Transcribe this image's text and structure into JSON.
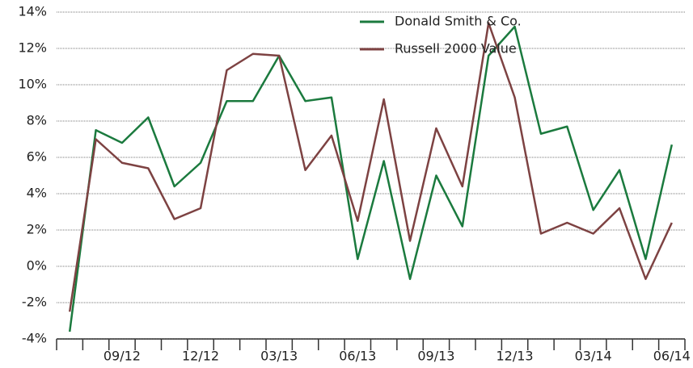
{
  "chart_data": {
    "type": "line",
    "categories": [
      null,
      null,
      "09/12",
      null,
      null,
      "12/12",
      null,
      null,
      "03/13",
      null,
      null,
      "06/13",
      null,
      null,
      "09/13",
      null,
      null,
      "12/13",
      null,
      null,
      "03/14",
      null,
      null,
      "06/14"
    ],
    "series": [
      {
        "name": "Donald Smith & Co.",
        "color": "#1b7a3e",
        "values": [
          -3.6,
          7.5,
          6.8,
          8.2,
          4.4,
          5.7,
          9.1,
          9.1,
          11.6,
          9.1,
          9.3,
          0.4,
          5.8,
          -0.7,
          5.0,
          2.2,
          11.6,
          13.2,
          7.3,
          7.7,
          3.1,
          5.3,
          0.4,
          6.7
        ]
      },
      {
        "name": "Russell 2000 Value",
        "color": "#7d4242",
        "values": [
          -2.5,
          7.0,
          5.7,
          5.4,
          2.6,
          3.2,
          10.8,
          11.7,
          11.6,
          5.3,
          7.2,
          2.5,
          9.2,
          1.4,
          7.6,
          4.4,
          13.4,
          9.3,
          1.8,
          2.4,
          1.8,
          3.2,
          -0.7,
          2.4
        ]
      }
    ],
    "ylim": [
      -4,
      14
    ],
    "yticks": [
      {
        "value": -4,
        "label": "-4%"
      },
      {
        "value": -2,
        "label": "-2%"
      },
      {
        "value": 0,
        "label": "0%"
      },
      {
        "value": 2,
        "label": "2%"
      },
      {
        "value": 4,
        "label": "4%"
      },
      {
        "value": 6,
        "label": "6%"
      },
      {
        "value": 8,
        "label": "8%"
      },
      {
        "value": 10,
        "label": "10%"
      },
      {
        "value": 12,
        "label": "12%"
      },
      {
        "value": 14,
        "label": "14%"
      }
    ],
    "grid": true,
    "legend": "top-right"
  }
}
